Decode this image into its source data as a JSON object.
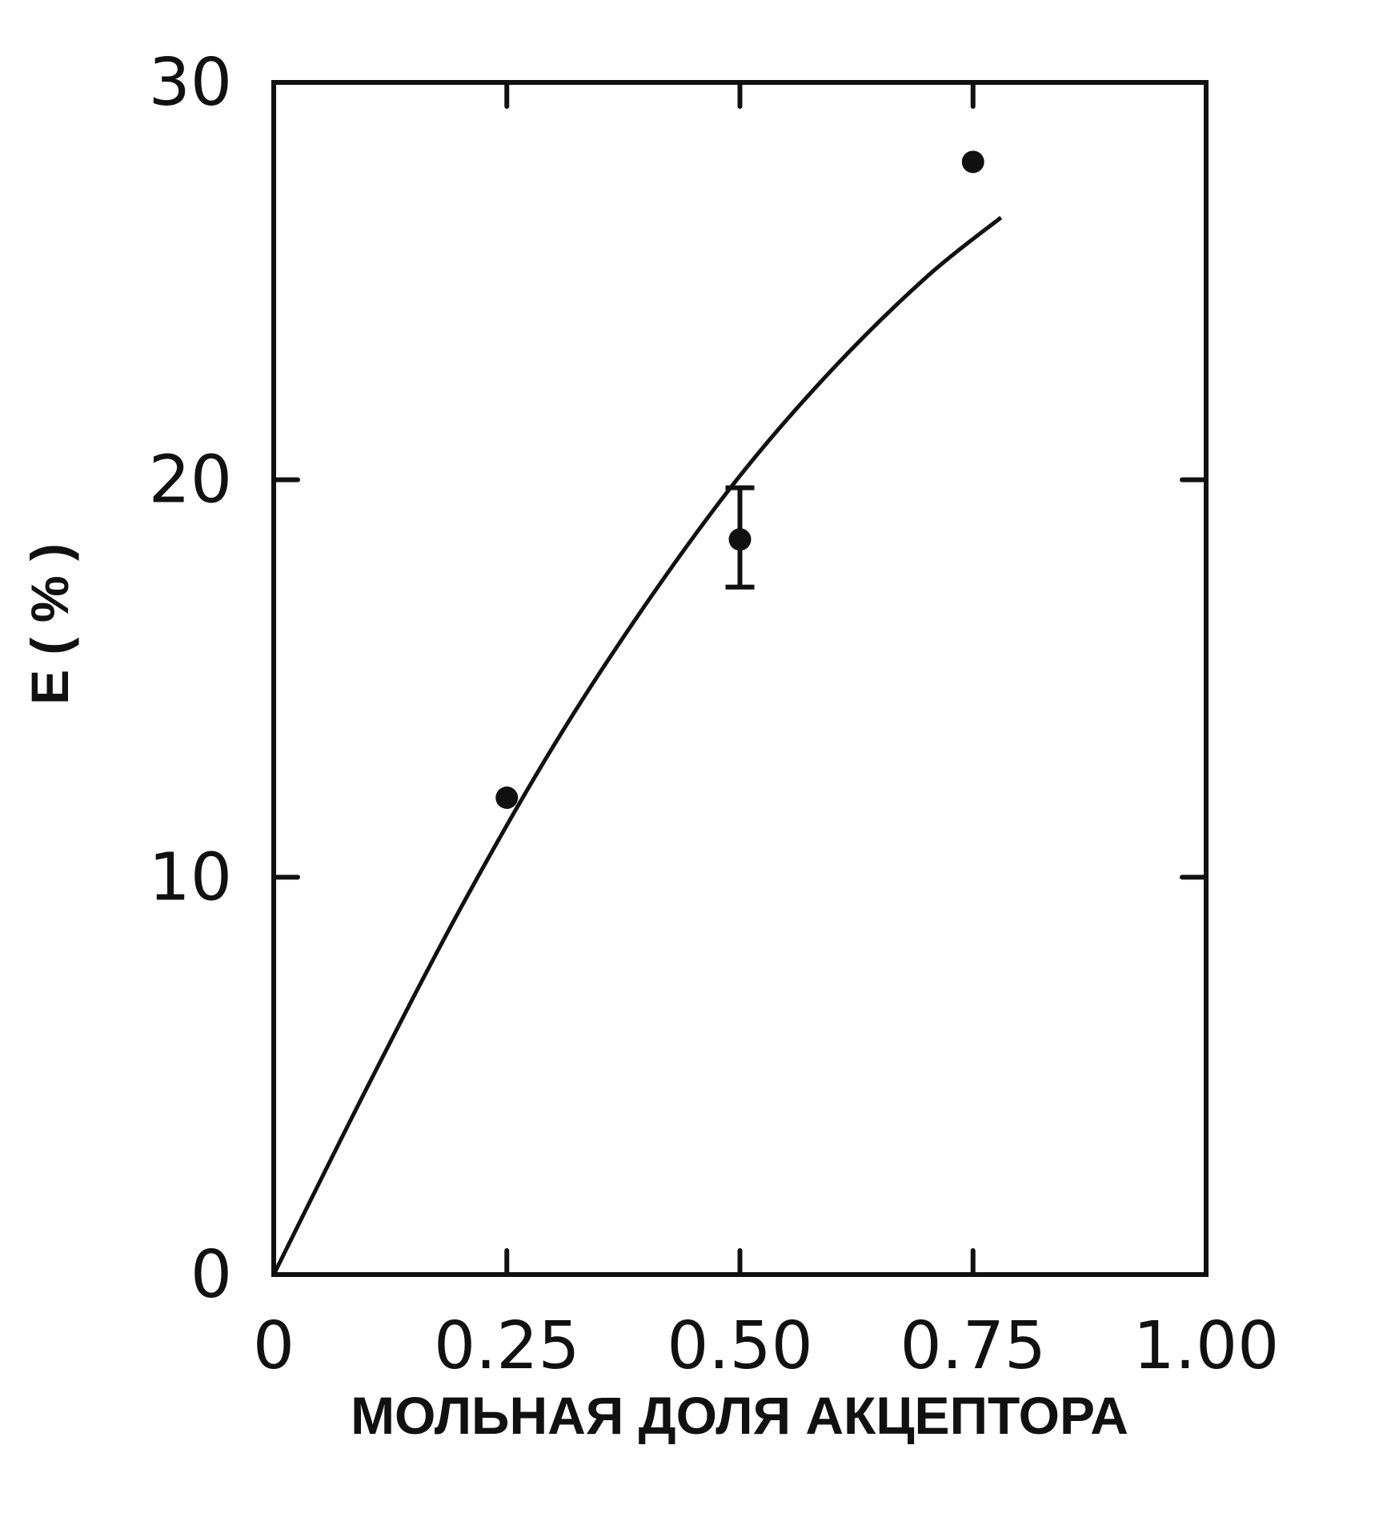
{
  "chart_data": {
    "type": "scatter",
    "xlabel": "МОЛЬНАЯ ДОЛЯ АКЦЕПТОРА",
    "ylabel": "E ( % )",
    "xlim": [
      0,
      1.0
    ],
    "ylim": [
      0,
      30
    ],
    "x_ticks": [
      "0",
      "0.25",
      "0.50",
      "0.75",
      "1.00"
    ],
    "x_tick_values": [
      0,
      0.25,
      0.5,
      0.75,
      1.0
    ],
    "y_ticks": [
      "0",
      "10",
      "20",
      "30"
    ],
    "y_tick_values": [
      0,
      10,
      20,
      30
    ],
    "grid": false,
    "series": [
      {
        "kind": "points",
        "x": [
          0.25,
          0.5,
          0.75
        ],
        "y": [
          12.0,
          18.5,
          28.0
        ],
        "error": [
          null,
          [
            17.3,
            19.8
          ],
          null
        ]
      },
      {
        "kind": "line",
        "x": [
          0,
          0.1,
          0.2,
          0.3,
          0.4,
          0.5,
          0.6,
          0.7,
          0.78
        ],
        "y": [
          0,
          4.7,
          9.2,
          13.3,
          16.9,
          20.1,
          22.8,
          25.1,
          26.6
        ]
      }
    ]
  }
}
